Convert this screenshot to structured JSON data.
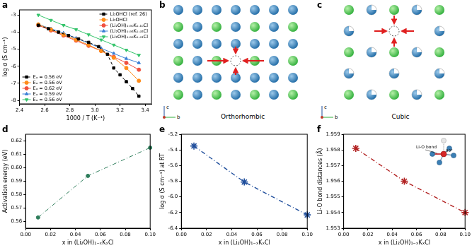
{
  "chart_data": [
    {
      "panel": "a",
      "type": "line",
      "x_label": "1000 / T (K⁻¹)",
      "y_label": "log σ (S cm⁻¹)",
      "xlim": [
        2.4,
        3.45
      ],
      "xticks": [
        2.4,
        2.6,
        2.8,
        {
          "value": 3,
          "label": "3.0"
        },
        3.2,
        3.4
      ],
      "ylim": [
        -8.2,
        -2.7
      ],
      "yticks": [
        -8,
        -7,
        -6,
        -5,
        -4,
        -3
      ],
      "grid": false,
      "legend": "upper right",
      "series": [
        {
          "name": "Li₂OHCl (ref. 26)",
          "color": "#000000",
          "marker": "square",
          "line_style": "dashed",
          "annotation": "Eₐ = 0.56 eV",
          "x": [
            2.55,
            2.63,
            2.71,
            2.79,
            2.87,
            2.95,
            3.03,
            3.1,
            3.15,
            3.2,
            3.25,
            3.3,
            3.35
          ],
          "values": [
            -3.6,
            -3.8,
            -4,
            -4.2,
            -4.4,
            -4.6,
            -4.85,
            -5.3,
            -6.1,
            -6.5,
            -6.9,
            -7.3,
            -7.75
          ]
        },
        {
          "name": "Li₂OHCl",
          "color": "#ff8c1a",
          "marker": "circle",
          "line_style": "solid",
          "annotation": "Eₐ = 0.56 eV",
          "x": [
            2.55,
            2.65,
            2.75,
            2.85,
            2.95,
            3.05,
            3.15,
            3.25,
            3.35
          ],
          "values": [
            -3.55,
            -3.85,
            -4.15,
            -4.45,
            -4.75,
            -5.1,
            -5.5,
            -6.1,
            -6.85
          ]
        },
        {
          "name": "(Li₂OH)₀.₉₀K₀.₁₀Cl",
          "color": "#f0503f",
          "marker": "circle",
          "line_style": "solid",
          "annotation": "Eₐ = 0.62 eV",
          "x": [
            2.55,
            2.65,
            2.75,
            2.85,
            2.95,
            3.05,
            3.15,
            3.25,
            3.35
          ],
          "values": [
            -3.6,
            -3.9,
            -4.2,
            -4.5,
            -4.8,
            -5.1,
            -5.45,
            -5.8,
            -6.2
          ]
        },
        {
          "name": "(Li₂OH)₀.₉₅K₀.₀₅Cl",
          "color": "#3a7fd5",
          "marker": "triangle",
          "line_style": "solid",
          "annotation": "Eₐ = 0.59 eV",
          "x": [
            2.55,
            2.65,
            2.75,
            2.85,
            2.95,
            3.05,
            3.15,
            3.25,
            3.35
          ],
          "values": [
            -3.55,
            -3.8,
            -4.05,
            -4.35,
            -4.65,
            -4.95,
            -5.25,
            -5.55,
            -5.8
          ]
        },
        {
          "name": "(Li₂OH)₀.₉₉K₀.₀₁Cl",
          "color": "#33c46a",
          "marker": "triangle_down",
          "line_style": "solid",
          "annotation": "Eₐ = 0.56 eV",
          "x": [
            2.55,
            2.65,
            2.75,
            2.85,
            2.95,
            3.05,
            3.15,
            3.25,
            3.35
          ],
          "values": [
            -3,
            -3.3,
            -3.6,
            -3.85,
            -4.15,
            -4.45,
            -4.75,
            -5.05,
            -5.35
          ]
        }
      ]
    },
    {
      "panel": "d",
      "type": "line",
      "x_label": "x in (Li₂OH)₁₋ₓKₓCl",
      "y_label": "Activation energy (eV)",
      "x": [
        0.01,
        0.05,
        0.1
      ],
      "values": [
        0.563,
        0.594,
        0.615
      ],
      "color": "#2e7d5b",
      "marker": "circle",
      "line_style": "dashdot",
      "grid": false,
      "xlim": [
        0,
        0.1
      ],
      "xticks": [
        {
          "value": 0,
          "label": "0.00"
        },
        0.02,
        0.04,
        0.06,
        0.08,
        {
          "value": 0.1,
          "label": "0.10"
        }
      ],
      "ylim": [
        0.555,
        0.625
      ],
      "yticks": [
        0.56,
        0.57,
        0.58,
        0.59,
        {
          "value": 0.6,
          "label": "0.60"
        },
        0.61,
        0.62
      ]
    },
    {
      "panel": "e",
      "type": "line",
      "x_label": "x in (Li₂OH)₁₋ₓKₓCl",
      "y_label": "log σ (S cm⁻¹) at RT",
      "x": [
        0.01,
        0.05,
        0.1
      ],
      "values": [
        -5.35,
        -5.81,
        -6.23
      ],
      "color": "#1f4e9c",
      "marker": "star",
      "line_style": "dashdot",
      "grid": false,
      "xlim": [
        0,
        0.1
      ],
      "xticks": [
        {
          "value": 0,
          "label": "0.00"
        },
        0.02,
        0.04,
        0.06,
        0.08,
        {
          "value": 0.1,
          "label": "0.10"
        }
      ],
      "ylim": [
        -6.4,
        -5.2
      ],
      "yticks": [
        -6.4,
        -6.2,
        {
          "value": -6,
          "label": "-6.0"
        },
        -5.8,
        -5.6,
        -5.4,
        -5.2
      ]
    },
    {
      "panel": "f",
      "type": "line",
      "x_label": "x in (Li₂OH)₁₋ₓKₓCl",
      "y_label": "Li-O bond distances (Å)",
      "x": [
        0.01,
        0.05,
        0.1
      ],
      "values": [
        1.9581,
        1.956,
        1.954
      ],
      "color": "#b22222",
      "marker": "star",
      "line_style": "dashdot",
      "grid": false,
      "xlim": [
        0,
        0.1
      ],
      "xticks": [
        {
          "value": 0,
          "label": "0.00"
        },
        0.02,
        0.04,
        0.06,
        0.08,
        {
          "value": 0.1,
          "label": "0.10"
        }
      ],
      "ylim": [
        1.953,
        1.959
      ],
      "yticks": [
        1.953,
        1.954,
        1.955,
        1.956,
        1.957,
        1.958,
        1.959
      ],
      "annotations": [
        "Li-O bond",
        "90°"
      ]
    }
  ],
  "diagrams": [
    {
      "panel": "b",
      "title": "Orthorhombic",
      "axis_labels": [
        "c",
        "b"
      ]
    },
    {
      "panel": "c",
      "title": "Cubic",
      "axis_labels": [
        "c",
        "b"
      ]
    }
  ]
}
